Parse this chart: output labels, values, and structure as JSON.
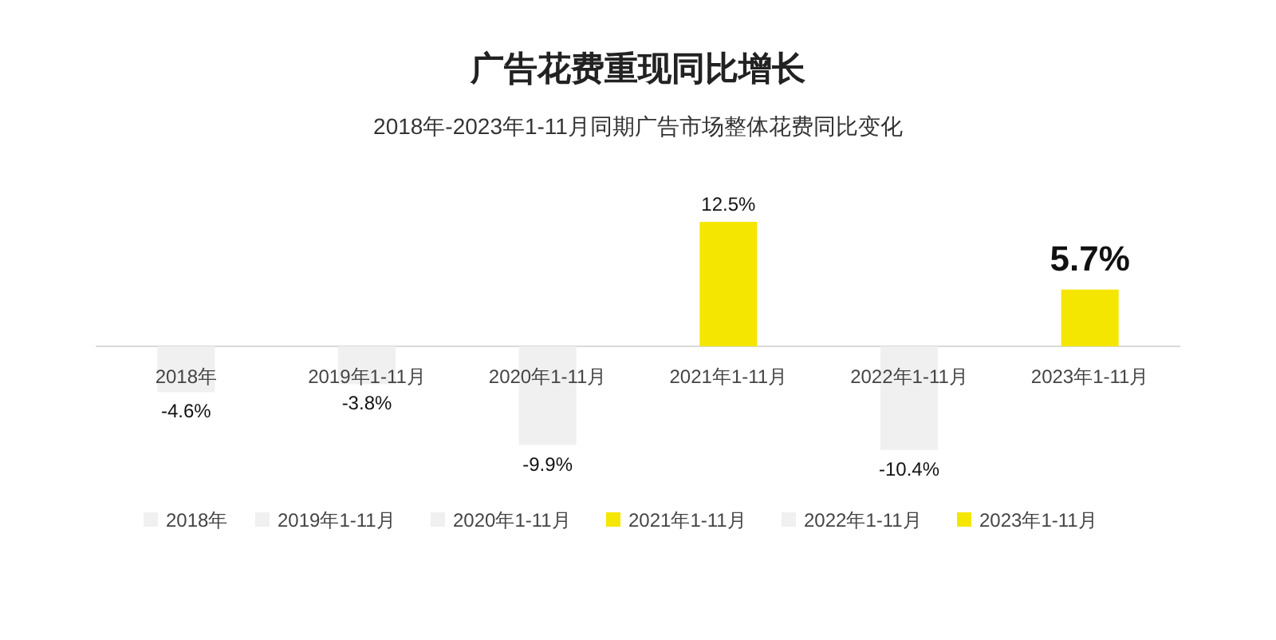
{
  "chart_data": {
    "type": "bar",
    "title": "广告花费重现同比增长",
    "subtitle": "2018年-2023年1-11月同期广告市场整体花费同比变化",
    "categories": [
      "2018年",
      "2019年1-11月",
      "2020年1-11月",
      "2021年1-11月",
      "2022年1-11月",
      "2023年1-11月"
    ],
    "stacked": true,
    "series": [
      {
        "name": "2018年",
        "color": "#f0f0f0",
        "values": [
          -4.6,
          null,
          null,
          null,
          null,
          null
        ],
        "value_labels": [
          "-4.6%",
          null,
          null,
          null,
          null,
          null
        ]
      },
      {
        "name": "2019年1-11月",
        "color": "#f0f0f0",
        "values": [
          null,
          -3.8,
          null,
          null,
          null,
          null
        ],
        "value_labels": [
          null,
          "-3.8%",
          null,
          null,
          null,
          null
        ]
      },
      {
        "name": "2020年1-11月",
        "color": "#f0f0f0",
        "values": [
          null,
          null,
          -9.9,
          null,
          null,
          null
        ],
        "value_labels": [
          null,
          null,
          "-9.9%",
          null,
          null,
          null
        ]
      },
      {
        "name": "2021年1-11月",
        "color": "#f5e600",
        "values": [
          null,
          null,
          null,
          12.5,
          null,
          null
        ],
        "value_labels": [
          null,
          null,
          null,
          "12.5%",
          null,
          null
        ]
      },
      {
        "name": "2022年1-11月",
        "color": "#f0f0f0",
        "values": [
          null,
          null,
          null,
          null,
          -10.4,
          null
        ],
        "value_labels": [
          null,
          null,
          null,
          null,
          "-10.4%",
          null
        ]
      },
      {
        "name": "2023年1-11月",
        "color": "#f5e600",
        "values": [
          null,
          null,
          null,
          null,
          null,
          5.7
        ],
        "value_labels": [
          null,
          null,
          null,
          null,
          null,
          "5.7%"
        ]
      }
    ],
    "legend": "bottom"
  }
}
